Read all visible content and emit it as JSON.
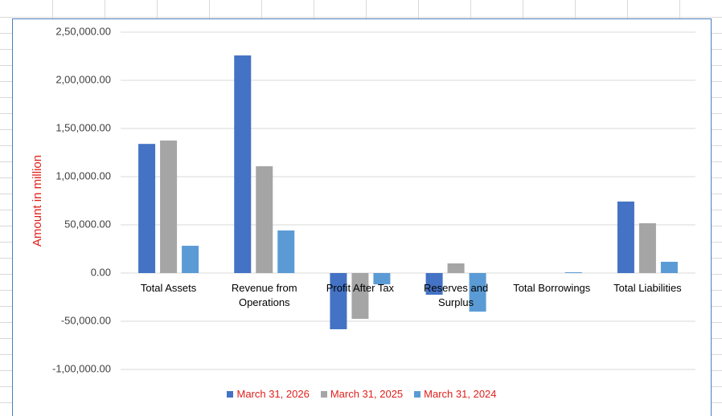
{
  "chart_data": {
    "type": "bar",
    "y_axis_label": "Amount in million",
    "categories": [
      "Total Assets",
      "Revenue from Operations",
      "Profit After Tax",
      "Reserves and Surplus",
      "Total Borrowings",
      "Total Liabilities"
    ],
    "series": [
      {
        "name": "March 31, 2026",
        "color": "#4472c4",
        "values": [
          134000,
          225800,
          -58300,
          -22500,
          0,
          74200
        ]
      },
      {
        "name": "March 31, 2025",
        "color": "#a5a5a5",
        "values": [
          137500,
          110800,
          -47500,
          10000,
          0,
          51700
        ]
      },
      {
        "name": "March 31, 2024",
        "color": "#5b9bd5",
        "values": [
          28300,
          44200,
          -11700,
          -40000,
          800,
          11700
        ]
      }
    ],
    "ylim": [
      -100000,
      250000
    ],
    "yticks": [
      {
        "value": -100000,
        "label": "-1,00,000.00"
      },
      {
        "value": -50000,
        "label": "-50,000.00"
      },
      {
        "value": 0,
        "label": "0.00"
      },
      {
        "value": 50000,
        "label": "50,000.00"
      },
      {
        "value": 100000,
        "label": "1,00,000.00"
      },
      {
        "value": 150000,
        "label": "1,50,000.00"
      },
      {
        "value": 200000,
        "label": "2,00,000.00"
      },
      {
        "value": 250000,
        "label": "2,50,000.00"
      }
    ],
    "grid": true,
    "legend": "bottom",
    "legend_text_color": "#e0201b",
    "axis_label_color": "#e0201b"
  }
}
